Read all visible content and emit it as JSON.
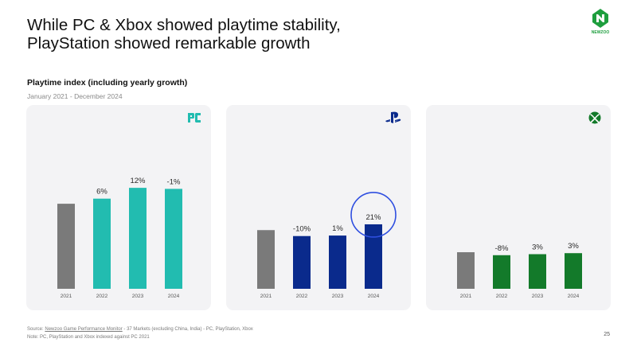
{
  "header": {
    "title_line1": "While PC & Xbox showed playtime stability,",
    "title_line2": "PlayStation showed remarkable growth",
    "subtitle": "Playtime index (including yearly growth)",
    "date_range": "January 2021 - December 2024"
  },
  "brand": {
    "logo_text": "NEWZOO",
    "color": "#1e9e3e"
  },
  "chart_data": [
    {
      "type": "bar",
      "platform": "PC",
      "icon": "pc-icon",
      "categories": [
        "2021",
        "2022",
        "2023",
        "2024"
      ],
      "values": [
        100,
        106,
        118.7,
        117.5
      ],
      "growth_labels": [
        "",
        "6%",
        "12%",
        "-1%"
      ],
      "colors": [
        "#7a7a7a",
        "#22bcb0",
        "#22bcb0",
        "#22bcb0"
      ],
      "ylim": [
        0,
        145
      ]
    },
    {
      "type": "bar",
      "platform": "PlayStation",
      "icon": "playstation-icon",
      "categories": [
        "2021",
        "2022",
        "2023",
        "2024"
      ],
      "values": [
        69,
        62,
        62.6,
        75.8
      ],
      "growth_labels": [
        "",
        "-10%",
        "1%",
        "21%"
      ],
      "colors": [
        "#7a7a7a",
        "#0a2a8c",
        "#0a2a8c",
        "#0a2a8c"
      ],
      "highlight_index": 3,
      "highlight_color": "#2f4fe0",
      "ylim": [
        0,
        145
      ]
    },
    {
      "type": "bar",
      "platform": "Xbox",
      "icon": "xbox-icon",
      "categories": [
        "2021",
        "2022",
        "2023",
        "2024"
      ],
      "values": [
        43,
        39.5,
        40.7,
        41.9
      ],
      "growth_labels": [
        "",
        "-8%",
        "3%",
        "3%"
      ],
      "colors": [
        "#7a7a7a",
        "#137a2a",
        "#137a2a",
        "#137a2a"
      ],
      "ylim": [
        0,
        145
      ]
    }
  ],
  "footer": {
    "source_prefix": "Source: ",
    "source_link": "Newzoo Game Performance Monitor",
    "source_rest": " - 37 Markets (excluding China, India) - PC, PlayStation, Xbox",
    "note": "Note: PC, PlayStation and Xbox indexed against PC 2021",
    "page_number": "25"
  }
}
